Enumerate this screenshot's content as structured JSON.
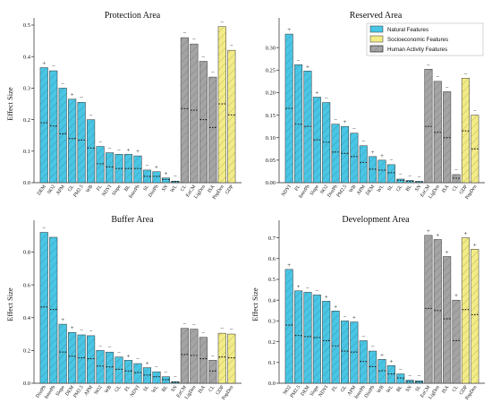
{
  "colors": {
    "natural": "#49c6e5",
    "socioeconomic": "#f3ec86",
    "human": "#a4a4a4",
    "edge": "#333333"
  },
  "legend": {
    "natural": "Natural Features",
    "socioeconomic": "Socioeconomic Features",
    "human": "Human Activity Features",
    "placement": "upper right of Reserved Area panel"
  },
  "chart_data": [
    {
      "type": "bar",
      "title": "Protection Area",
      "ylabel": "Effect Size",
      "ylim": [
        0,
        0.5
      ],
      "yticks": [
        0.0,
        0.1,
        0.2,
        0.3,
        0.4,
        0.5
      ],
      "categories": [
        "DEM",
        "NO2",
        "APM",
        "GL",
        "PM2.5",
        "WB",
        "FL",
        "NDVI",
        "Slope",
        "BL",
        "InterPb",
        "SL",
        "DistPb",
        "SN",
        "WL",
        "CL",
        "EnCM",
        "LigDen",
        "ISA",
        "PopDen",
        "GDP"
      ],
      "groups": [
        "natural",
        "natural",
        "natural",
        "natural",
        "natural",
        "natural",
        "natural",
        "natural",
        "natural",
        "natural",
        "natural",
        "natural",
        "natural",
        "natural",
        "natural",
        "human",
        "human",
        "human",
        "human",
        "socioeconomic",
        "socioeconomic"
      ],
      "values": [
        0.365,
        0.355,
        0.3,
        0.265,
        0.255,
        0.2,
        0.115,
        0.095,
        0.09,
        0.09,
        0.085,
        0.04,
        0.035,
        0.015,
        0.005,
        0.46,
        0.44,
        0.385,
        0.335,
        0.495,
        0.42
      ],
      "means": [
        0.19,
        0.18,
        0.155,
        0.14,
        0.135,
        0.11,
        0.06,
        0.05,
        0.045,
        0.045,
        0.045,
        0.02,
        0.02,
        0.01,
        0.003,
        0.235,
        0.23,
        0.2,
        0.175,
        0.25,
        0.215
      ],
      "markers": [
        "+",
        "−",
        "−",
        "+",
        "−",
        "−",
        "−",
        "−",
        "−",
        "+",
        "+",
        "−",
        "+",
        "+",
        "−",
        "−",
        "−",
        "−",
        "−",
        "−",
        "−"
      ]
    },
    {
      "type": "bar",
      "title": "Reserved Area",
      "ylabel": "",
      "ylim": [
        0,
        0.35
      ],
      "yticks": [
        0.0,
        0.05,
        0.1,
        0.15,
        0.2,
        0.25,
        0.3
      ],
      "categories": [
        "NDVI",
        "FL",
        "InterPb",
        "Slope",
        "NO2",
        "DistPb",
        "PM2.5",
        "WB",
        "APM",
        "DEM",
        "WL",
        "SL",
        "GL",
        "BL",
        "SN",
        "EnCM",
        "LigDen",
        "ISA",
        "CL",
        "GDP",
        "PopDen"
      ],
      "groups": [
        "natural",
        "natural",
        "natural",
        "natural",
        "natural",
        "natural",
        "natural",
        "natural",
        "natural",
        "natural",
        "natural",
        "natural",
        "natural",
        "natural",
        "natural",
        "human",
        "human",
        "human",
        "human",
        "socioeconomic",
        "socioeconomic"
      ],
      "values": [
        0.33,
        0.262,
        0.248,
        0.19,
        0.178,
        0.13,
        0.125,
        0.11,
        0.082,
        0.058,
        0.05,
        0.04,
        0.008,
        0.005,
        0.003,
        0.252,
        0.225,
        0.202,
        0.018,
        0.232,
        0.15
      ],
      "means": [
        0.165,
        0.13,
        0.125,
        0.095,
        0.09,
        0.068,
        0.065,
        0.058,
        0.045,
        0.03,
        0.028,
        0.022,
        0.005,
        0.003,
        0.002,
        0.125,
        0.112,
        0.1,
        0.01,
        0.115,
        0.075
      ],
      "markers": [
        "+",
        "−",
        "+",
        "+",
        "−",
        "−",
        "+",
        "−",
        "−",
        "+",
        "+",
        "−",
        "−",
        "−",
        "−",
        "−",
        "−",
        "−",
        "−",
        "−",
        "−"
      ]
    },
    {
      "type": "bar",
      "title": "Buffer Area",
      "ylabel": "Effect Size",
      "ylim": [
        0,
        0.95
      ],
      "yticks": [
        0.0,
        0.2,
        0.4,
        0.6,
        0.8
      ],
      "categories": [
        "DistPb",
        "InterPb",
        "Slope",
        "DEM",
        "PM2.5",
        "APM",
        "NO2",
        "WB",
        "GL",
        "FL",
        "NDVI",
        "SL",
        "WL",
        "BL",
        "SN",
        "EnCM",
        "LigDen",
        "ISA",
        "CL",
        "GDP",
        "PopDen"
      ],
      "groups": [
        "natural",
        "natural",
        "natural",
        "natural",
        "natural",
        "natural",
        "natural",
        "natural",
        "natural",
        "natural",
        "natural",
        "natural",
        "natural",
        "natural",
        "natural",
        "human",
        "human",
        "human",
        "human",
        "socioeconomic",
        "socioeconomic"
      ],
      "values": [
        0.92,
        0.89,
        0.36,
        0.31,
        0.295,
        0.29,
        0.2,
        0.19,
        0.16,
        0.14,
        0.12,
        0.095,
        0.07,
        0.04,
        0.01,
        0.335,
        0.33,
        0.28,
        0.14,
        0.305,
        0.3
      ],
      "means": [
        0.465,
        0.45,
        0.19,
        0.165,
        0.155,
        0.15,
        0.105,
        0.1,
        0.085,
        0.075,
        0.065,
        0.05,
        0.04,
        0.022,
        0.006,
        0.175,
        0.17,
        0.15,
        0.075,
        0.16,
        0.155
      ],
      "markers": [
        "−",
        "",
        "+",
        "+",
        "−",
        "−",
        "−",
        "−",
        "−",
        "+",
        "−",
        "+",
        "−",
        "−",
        "−",
        "−",
        "−",
        "−",
        "−",
        "−",
        "−"
      ]
    },
    {
      "type": "bar",
      "title": "Development Area",
      "ylabel": "Effect Size",
      "ylim": [
        0,
        0.75
      ],
      "yticks": [
        0.0,
        0.1,
        0.2,
        0.3,
        0.4,
        0.5,
        0.6,
        0.7
      ],
      "categories": [
        "NO2",
        "PM2.5",
        "DEM",
        "Slope",
        "NDVI",
        "FL",
        "GL",
        "APM",
        "InterPb",
        "DistPb",
        "WB",
        "WL",
        "BL",
        "SN",
        "SL",
        "EnCM",
        "LigDen",
        "ISA",
        "CL",
        "GDP",
        "PopDen"
      ],
      "groups": [
        "natural",
        "natural",
        "natural",
        "natural",
        "natural",
        "natural",
        "natural",
        "natural",
        "natural",
        "natural",
        "natural",
        "natural",
        "natural",
        "natural",
        "natural",
        "human",
        "human",
        "human",
        "human",
        "socioeconomic",
        "socioeconomic"
      ],
      "values": [
        0.548,
        0.445,
        0.438,
        0.425,
        0.395,
        0.348,
        0.3,
        0.295,
        0.205,
        0.155,
        0.115,
        0.085,
        0.045,
        0.015,
        0.012,
        0.712,
        0.692,
        0.61,
        0.4,
        0.7,
        0.645
      ],
      "means": [
        0.28,
        0.23,
        0.225,
        0.22,
        0.205,
        0.18,
        0.155,
        0.15,
        0.105,
        0.08,
        0.06,
        0.045,
        0.025,
        0.008,
        0.006,
        0.36,
        0.35,
        0.31,
        0.205,
        0.355,
        0.33
      ],
      "markers": [
        "+",
        "+",
        "−",
        "−",
        "+",
        "+",
        "−",
        "+",
        "−",
        "−",
        "+",
        "+",
        "−",
        "−",
        "−",
        "+",
        "+",
        "+",
        "+",
        "+",
        "+"
      ]
    }
  ]
}
